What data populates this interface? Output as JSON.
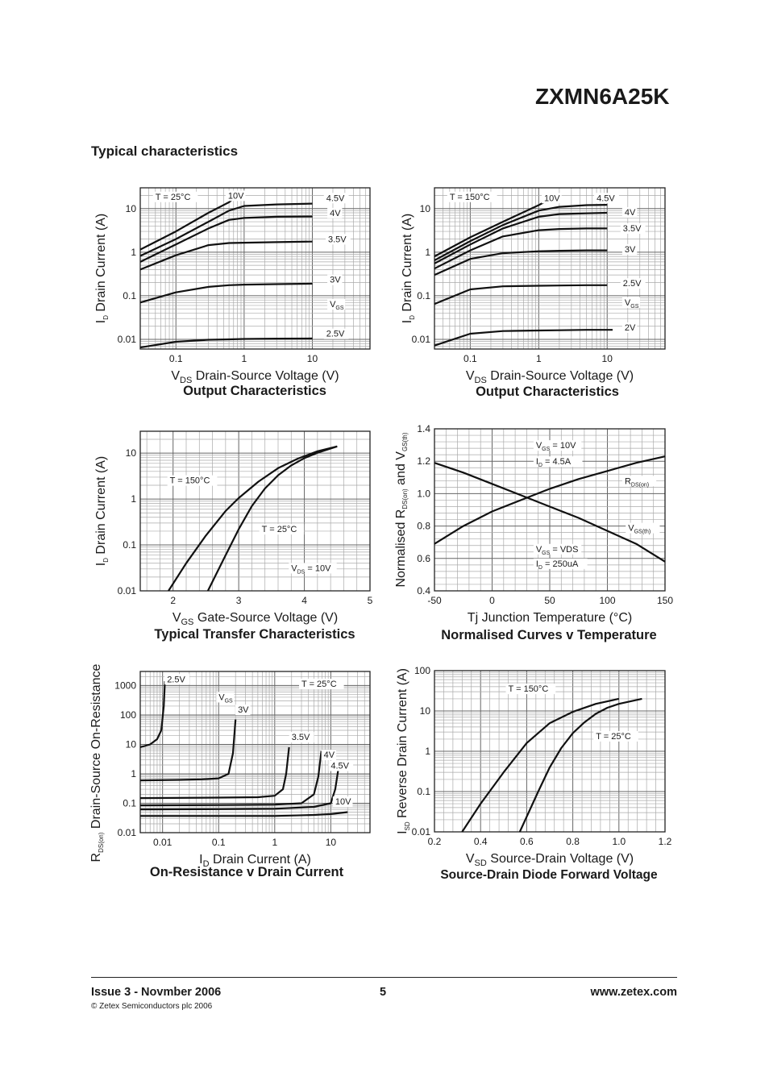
{
  "header": {
    "part_number": "ZXMN6A25K"
  },
  "section_title": "Typical characteristics",
  "footer": {
    "issue": "Issue 3 - Novmber 2006",
    "page": "5",
    "website": "www.zetex.com",
    "copyright": "© Zetex Semiconductors plc 2006"
  },
  "chart_data": [
    {
      "id": "output_25",
      "type": "line",
      "title": "Output Characteristics",
      "xlabel": "Drain-Source Voltage (V)",
      "xsym": "V",
      "xsub": "DS",
      "ylabel": "Drain Current (A)",
      "ysym": "I",
      "ysub": "D",
      "xscale": "log",
      "yscale": "log",
      "xlim": [
        0.03,
        70
      ],
      "ylim": [
        0.006,
        30
      ],
      "xticks": [
        {
          "v": 0.1,
          "t": "0.1"
        },
        {
          "v": 1,
          "t": "1"
        },
        {
          "v": 10,
          "t": "10"
        }
      ],
      "yticks": [
        {
          "v": 0.01,
          "t": "0.01"
        },
        {
          "v": 0.1,
          "t": "0.1"
        },
        {
          "v": 1,
          "t": "1"
        },
        {
          "v": 10,
          "t": "10"
        }
      ],
      "annotations": [
        {
          "t": "T = 25°C",
          "x": 0.05,
          "y": 16
        },
        {
          "t": "10V",
          "x": 0.58,
          "y": 17
        },
        {
          "t": "4.5V",
          "x": 16,
          "y": 15
        },
        {
          "t": "4V",
          "x": 18,
          "y": 6.8
        },
        {
          "t": "3.5V",
          "x": 17,
          "y": 1.7
        },
        {
          "t": "3V",
          "x": 18,
          "y": 0.2
        },
        {
          "t": "VGS",
          "x": 18,
          "y": 0.055
        },
        {
          "t": "2.5V",
          "x": 16,
          "y": 0.0115
        }
      ],
      "series": [
        {
          "name": "10V",
          "x": [
            0.03,
            0.1,
            0.3,
            0.6,
            0.7
          ],
          "y": [
            1.15,
            3,
            8,
            14,
            17
          ]
        },
        {
          "name": "4.5V",
          "x": [
            0.03,
            0.1,
            0.3,
            0.6,
            1,
            3,
            10
          ],
          "y": [
            0.82,
            2,
            5,
            9,
            11.5,
            12.5,
            13
          ]
        },
        {
          "name": "4V",
          "x": [
            0.03,
            0.1,
            0.3,
            0.6,
            1,
            3,
            10
          ],
          "y": [
            0.6,
            1.5,
            3.5,
            5.5,
            6.1,
            6.5,
            6.6
          ]
        },
        {
          "name": "3.5V",
          "x": [
            0.03,
            0.1,
            0.3,
            0.6,
            1,
            3,
            10
          ],
          "y": [
            0.4,
            0.85,
            1.45,
            1.62,
            1.65,
            1.7,
            1.75
          ]
        },
        {
          "name": "3V",
          "x": [
            0.03,
            0.1,
            0.3,
            0.6,
            1,
            3,
            10
          ],
          "y": [
            0.07,
            0.12,
            0.16,
            0.175,
            0.18,
            0.185,
            0.19
          ]
        },
        {
          "name": "2.5V",
          "x": [
            0.03,
            0.1,
            0.3,
            0.6,
            1,
            3,
            10
          ],
          "y": [
            0.0065,
            0.0088,
            0.0098,
            0.01,
            0.0102,
            0.0104,
            0.0105
          ]
        }
      ]
    },
    {
      "id": "output_150",
      "type": "line",
      "title": "Output Characteristics",
      "xlabel": "Drain-Source Voltage (V)",
      "xsym": "V",
      "xsub": "DS",
      "ylabel": "Drain Current (A)",
      "ysym": "I",
      "ysub": "D",
      "xscale": "log",
      "yscale": "log",
      "xlim": [
        0.03,
        70
      ],
      "ylim": [
        0.006,
        30
      ],
      "xticks": [
        {
          "v": 0.1,
          "t": "0.1"
        },
        {
          "v": 1,
          "t": "1"
        },
        {
          "v": 10,
          "t": "10"
        }
      ],
      "yticks": [
        {
          "v": 0.01,
          "t": "0.01"
        },
        {
          "v": 0.1,
          "t": "0.1"
        },
        {
          "v": 1,
          "t": "1"
        },
        {
          "v": 10,
          "t": "10"
        }
      ],
      "annotations": [
        {
          "t": "T = 150°C",
          "x": 0.05,
          "y": 16
        },
        {
          "t": "10V",
          "x": 1.2,
          "y": 15
        },
        {
          "t": "4.5V",
          "x": 7,
          "y": 15
        },
        {
          "t": "4V",
          "x": 18,
          "y": 7
        },
        {
          "t": "3.5V",
          "x": 17,
          "y": 3
        },
        {
          "t": "3V",
          "x": 18,
          "y": 1
        },
        {
          "t": "2.5V",
          "x": 17,
          "y": 0.165
        },
        {
          "t": "VGS",
          "x": 18,
          "y": 0.06
        },
        {
          "t": "2V",
          "x": 18,
          "y": 0.016
        }
      ],
      "series": [
        {
          "name": "10V",
          "x": [
            0.03,
            0.1,
            0.3,
            1,
            1.3
          ],
          "y": [
            0.8,
            2.2,
            5,
            12,
            15
          ]
        },
        {
          "name": "4.5V",
          "x": [
            0.03,
            0.1,
            0.3,
            1,
            2,
            5,
            10
          ],
          "y": [
            0.65,
            1.8,
            4.2,
            9,
            11,
            12,
            12.2
          ]
        },
        {
          "name": "4V",
          "x": [
            0.03,
            0.1,
            0.3,
            1,
            2,
            5,
            10
          ],
          "y": [
            0.55,
            1.5,
            3.5,
            6.5,
            7.5,
            7.8,
            8
          ]
        },
        {
          "name": "3.5V",
          "x": [
            0.03,
            0.1,
            0.3,
            1,
            2,
            5,
            10
          ],
          "y": [
            0.42,
            1.1,
            2.3,
            3.2,
            3.4,
            3.5,
            3.5
          ]
        },
        {
          "name": "3V",
          "x": [
            0.03,
            0.1,
            0.3,
            1,
            2,
            5,
            10
          ],
          "y": [
            0.3,
            0.7,
            0.95,
            1.05,
            1.08,
            1.1,
            1.1
          ]
        },
        {
          "name": "2.5V",
          "x": [
            0.03,
            0.1,
            0.3,
            1,
            2,
            5,
            10
          ],
          "y": [
            0.065,
            0.14,
            0.165,
            0.17,
            0.172,
            0.175,
            0.175
          ]
        },
        {
          "name": "2V",
          "x": [
            0.03,
            0.1,
            0.3,
            1,
            2,
            5,
            10,
            12
          ],
          "y": [
            0.0072,
            0.0135,
            0.0155,
            0.016,
            0.0162,
            0.0165,
            0.0165,
            0.0165
          ]
        }
      ]
    },
    {
      "id": "transfer",
      "type": "line",
      "title": "Typical Transfer Characteristics",
      "xlabel": "Gate-Source Voltage (V)",
      "xsym": "V",
      "xsub": "GS",
      "ylabel": "Drain Current (A)",
      "ysym": "I",
      "ysub": "D",
      "xscale": "linear",
      "yscale": "log",
      "xlim": [
        1.5,
        5
      ],
      "ylim": [
        0.01,
        30
      ],
      "xticks": [
        {
          "v": 2,
          "t": "2"
        },
        {
          "v": 3,
          "t": "3"
        },
        {
          "v": 4,
          "t": "4"
        },
        {
          "v": 5,
          "t": "5"
        }
      ],
      "yticks": [
        {
          "v": 0.01,
          "t": "0.01"
        },
        {
          "v": 0.1,
          "t": "0.1"
        },
        {
          "v": 1,
          "t": "1"
        },
        {
          "v": 10,
          "t": "10"
        }
      ],
      "annotations": [
        {
          "t": "T = 150°C",
          "x": 1.95,
          "y": 2.2
        },
        {
          "t": "T = 25°C",
          "x": 3.35,
          "y": 0.19
        },
        {
          "t": "VDS = 10V",
          "x": 3.8,
          "y": 0.027
        }
      ],
      "series": [
        {
          "name": "T = 150°C",
          "x": [
            1.93,
            2.2,
            2.5,
            2.8,
            3.0,
            3.3,
            3.6,
            3.9,
            4.2,
            4.5
          ],
          "y": [
            0.01,
            0.04,
            0.16,
            0.55,
            1.05,
            2.4,
            4.7,
            7.6,
            11,
            14
          ]
        },
        {
          "name": "T = 25°C",
          "x": [
            2.53,
            2.8,
            3.0,
            3.2,
            3.4,
            3.6,
            3.8,
            4.0,
            4.2,
            4.5
          ],
          "y": [
            0.01,
            0.06,
            0.22,
            0.7,
            1.7,
            3.3,
            5.4,
            7.8,
            10.2,
            14
          ]
        }
      ]
    },
    {
      "id": "normalised",
      "type": "line",
      "title": "Normalised Curves v Temperature",
      "xlabel": "Junction Temperature (°C)",
      "xsym": "Tj",
      "xsub": "",
      "ylabel": "Normalised R",
      "ysym": "",
      "ysub": "",
      "ylabel_parts": [
        "Normalised R",
        "DS(on)",
        "and V",
        "GS(th)"
      ],
      "xscale": "linear",
      "yscale": "linear",
      "xlim": [
        -50,
        150
      ],
      "ylim": [
        0.4,
        1.4
      ],
      "xticks": [
        {
          "v": -50,
          "t": "-50"
        },
        {
          "v": 0,
          "t": "0"
        },
        {
          "v": 50,
          "t": "50"
        },
        {
          "v": 100,
          "t": "100"
        },
        {
          "v": 150,
          "t": "150"
        }
      ],
      "yticks": [
        {
          "v": 0.4,
          "t": "0.4"
        },
        {
          "v": 0.6,
          "t": "0.6"
        },
        {
          "v": 0.8,
          "t": "0.8"
        },
        {
          "v": 1.0,
          "t": "1.0"
        },
        {
          "v": 1.2,
          "t": "1.2"
        },
        {
          "v": 1.4,
          "t": "1.4"
        }
      ],
      "annotations": [
        {
          "t": "VGS = 10V",
          "x": 38,
          "y": 1.28
        },
        {
          "t": "ID = 4.5A",
          "x": 38,
          "y": 1.18
        },
        {
          "t": "RDS(on)",
          "x": 115,
          "y": 1.06
        },
        {
          "t": "VGS(th)",
          "x": 118,
          "y": 0.77
        },
        {
          "t": "VGS = VDS",
          "x": 38,
          "y": 0.64
        },
        {
          "t": "ID = 250uA",
          "x": 38,
          "y": 0.55
        }
      ],
      "series": [
        {
          "name": "RDS(on)",
          "x": [
            -50,
            -25,
            0,
            25,
            50,
            75,
            100,
            125,
            150
          ],
          "y": [
            0.69,
            0.8,
            0.89,
            0.96,
            1.03,
            1.09,
            1.14,
            1.19,
            1.23
          ]
        },
        {
          "name": "VGS(th)",
          "x": [
            -50,
            -25,
            0,
            25,
            50,
            75,
            100,
            125,
            150
          ],
          "y": [
            1.19,
            1.13,
            1.06,
            0.99,
            0.92,
            0.85,
            0.77,
            0.69,
            0.58
          ]
        }
      ]
    },
    {
      "id": "on_resistance",
      "type": "line",
      "title": "On-Resistance v Drain Current",
      "xlabel": "Drain Current (A)",
      "xsym": "I",
      "xsub": "D",
      "ylabel": "Drain-Source On-Resistance (Ω)",
      "ysym": "R",
      "ysub": "DS(on)",
      "xscale": "log",
      "yscale": "log",
      "xlim": [
        0.004,
        50
      ],
      "ylim": [
        0.01,
        3000
      ],
      "xticks": [
        {
          "v": 0.01,
          "t": "0.01"
        },
        {
          "v": 0.1,
          "t": "0.1"
        },
        {
          "v": 1,
          "t": "1"
        },
        {
          "v": 10,
          "t": "10"
        }
      ],
      "yticks": [
        {
          "v": 0.01,
          "t": "0.01"
        },
        {
          "v": 0.1,
          "t": "0.1"
        },
        {
          "v": 1,
          "t": "1"
        },
        {
          "v": 10,
          "t": "10"
        },
        {
          "v": 100,
          "t": "100"
        },
        {
          "v": 1000,
          "t": "1000"
        }
      ],
      "annotations": [
        {
          "t": "2.5V",
          "x": 0.012,
          "y": 1300
        },
        {
          "t": "VGS",
          "x": 0.1,
          "y": 320
        },
        {
          "t": "3V",
          "x": 0.22,
          "y": 120
        },
        {
          "t": "T = 25°C",
          "x": 3,
          "y": 900
        },
        {
          "t": "3.5V",
          "x": 2,
          "y": 14
        },
        {
          "t": "4V",
          "x": 7.5,
          "y": 3.5
        },
        {
          "t": "4.5V",
          "x": 10,
          "y": 1.5
        },
        {
          "t": "10V",
          "x": 12,
          "y": 0.09
        }
      ],
      "series": [
        {
          "name": "2.5V",
          "x": [
            0.004,
            0.006,
            0.008,
            0.0095,
            0.0105,
            0.011
          ],
          "y": [
            8,
            10,
            15,
            30,
            200,
            1400
          ]
        },
        {
          "name": "3V",
          "x": [
            0.004,
            0.02,
            0.05,
            0.1,
            0.15,
            0.18,
            0.2
          ],
          "y": [
            0.6,
            0.62,
            0.65,
            0.7,
            1,
            5,
            70
          ]
        },
        {
          "name": "3.5V",
          "x": [
            0.004,
            0.1,
            0.5,
            1,
            1.4,
            1.6,
            1.8
          ],
          "y": [
            0.15,
            0.155,
            0.16,
            0.18,
            0.3,
            1,
            8
          ]
        },
        {
          "name": "4V",
          "x": [
            0.004,
            0.1,
            1,
            3,
            5,
            6,
            6.8
          ],
          "y": [
            0.085,
            0.087,
            0.09,
            0.1,
            0.2,
            0.8,
            6
          ]
        },
        {
          "name": "4.5V",
          "x": [
            0.004,
            0.1,
            1,
            5,
            10,
            12,
            14
          ],
          "y": [
            0.062,
            0.063,
            0.065,
            0.075,
            0.1,
            0.3,
            2
          ]
        },
        {
          "name": "10V",
          "x": [
            0.004,
            0.1,
            1,
            5,
            10,
            20
          ],
          "y": [
            0.037,
            0.037,
            0.037,
            0.04,
            0.043,
            0.05
          ]
        }
      ]
    },
    {
      "id": "diode",
      "type": "line",
      "title": "Source-Drain Diode Forward Voltage",
      "xlabel": "Source-Drain Voltage (V)",
      "xsym": "V",
      "xsub": "SD",
      "ylabel": "Reverse Drain Current (A)",
      "ysym": "I",
      "ysub": "SD",
      "xscale": "linear",
      "yscale": "log",
      "xlim": [
        0.2,
        1.2
      ],
      "ylim": [
        0.01,
        100
      ],
      "xticks": [
        {
          "v": 0.2,
          "t": "0.2"
        },
        {
          "v": 0.4,
          "t": "0.4"
        },
        {
          "v": 0.6,
          "t": "0.6"
        },
        {
          "v": 0.8,
          "t": "0.8"
        },
        {
          "v": 1.0,
          "t": "1.0"
        },
        {
          "v": 1.2,
          "t": "1.2"
        }
      ],
      "yticks": [
        {
          "v": 0.01,
          "t": "0.01"
        },
        {
          "v": 0.1,
          "t": "0.1"
        },
        {
          "v": 1,
          "t": "1"
        },
        {
          "v": 10,
          "t": "10"
        },
        {
          "v": 100,
          "t": "100"
        }
      ],
      "annotations": [
        {
          "t": "T = 150°C",
          "x": 0.52,
          "y": 30
        },
        {
          "t": "T = 25°C",
          "x": 0.9,
          "y": 2
        }
      ],
      "series": [
        {
          "name": "T = 150°C",
          "x": [
            0.32,
            0.4,
            0.5,
            0.6,
            0.7,
            0.8,
            0.9,
            1.0
          ],
          "y": [
            0.01,
            0.05,
            0.3,
            1.6,
            5,
            9.5,
            15,
            20
          ]
        },
        {
          "name": "T = 25°C",
          "x": [
            0.57,
            0.65,
            0.7,
            0.75,
            0.8,
            0.85,
            0.9,
            0.95,
            1.0,
            1.1
          ],
          "y": [
            0.01,
            0.1,
            0.4,
            1.2,
            2.8,
            5.2,
            8.5,
            12,
            15,
            20
          ]
        }
      ]
    }
  ]
}
